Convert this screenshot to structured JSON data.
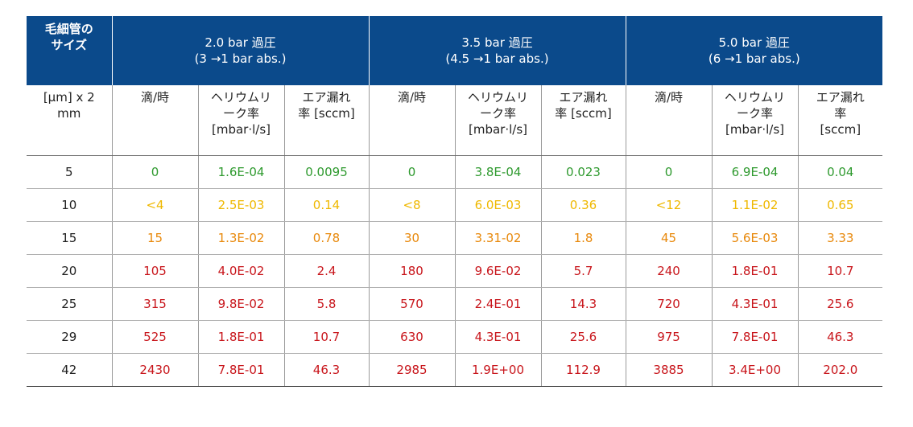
{
  "header": {
    "size_label": [
      "毛細管の",
      "サイズ"
    ],
    "groups": [
      {
        "title": "2.0 bar 過圧",
        "subtitle": "(3 →1 bar abs.)"
      },
      {
        "title": "3.5 bar 過圧",
        "subtitle": "(4.5 →1 bar abs.)"
      },
      {
        "title": "5.0 bar 過圧",
        "subtitle": "(6 →1 bar abs.)"
      }
    ]
  },
  "units": {
    "size_unit": [
      "[µm] x 2",
      "mm"
    ],
    "groups": [
      {
        "drops": [
          "滴/時"
        ],
        "helium": [
          "ヘリウムリ",
          "ーク率",
          "[mbar·l/s]"
        ],
        "air": [
          "エア漏れ",
          "率 [sccm]"
        ]
      },
      {
        "drops": [
          "滴/時"
        ],
        "helium": [
          "ヘリウムリ",
          "ーク率",
          "[mbar·l/s]"
        ],
        "air": [
          "エア漏れ",
          "率  [sccm]"
        ]
      },
      {
        "drops": [
          "滴/時"
        ],
        "helium": [
          "ヘリウムリ",
          "ーク率",
          "[mbar·l/s]"
        ],
        "air": [
          "エア漏れ",
          "率",
          "[sccm]"
        ]
      }
    ]
  },
  "colors": {
    "header_bg": "#0b4a8b",
    "green": "#2f9a2f",
    "yellow": "#efb800",
    "orange": "#e8890c",
    "red": "#c8151b"
  },
  "rows": [
    {
      "size": "5",
      "color": "green",
      "values": [
        "0",
        "1.6E-04",
        "0.0095",
        "0",
        "3.8E-04",
        "0.023",
        "0",
        "6.9E-04",
        "0.04"
      ]
    },
    {
      "size": "10",
      "color": "yellow",
      "values": [
        "<4",
        "2.5E-03",
        "0.14",
        "<8",
        "6.0E-03",
        "0.36",
        "<12",
        "1.1E-02",
        "0.65"
      ]
    },
    {
      "size": "15",
      "color": "orange",
      "values": [
        "15",
        "1.3E-02",
        "0.78",
        "30",
        "3.31-02",
        "1.8",
        "45",
        "5.6E-03",
        "3.33"
      ]
    },
    {
      "size": "20",
      "color": "red",
      "values": [
        "105",
        "4.0E-02",
        "2.4",
        "180",
        "9.6E-02",
        "5.7",
        "240",
        "1.8E-01",
        "10.7"
      ]
    },
    {
      "size": "25",
      "color": "red",
      "values": [
        "315",
        "9.8E-02",
        "5.8",
        "570",
        "2.4E-01",
        "14.3",
        "720",
        "4.3E-01",
        "25.6"
      ]
    },
    {
      "size": "29",
      "color": "red",
      "values": [
        "525",
        "1.8E-01",
        "10.7",
        "630",
        "4.3E-01",
        "25.6",
        "975",
        "7.8E-01",
        "46.3"
      ]
    },
    {
      "size": "42",
      "color": "red",
      "values": [
        "2430",
        "7.8E-01",
        "46.3",
        "2985",
        "1.9E+00",
        "112.9",
        "3885",
        "3.4E+00",
        "202.0"
      ]
    }
  ]
}
